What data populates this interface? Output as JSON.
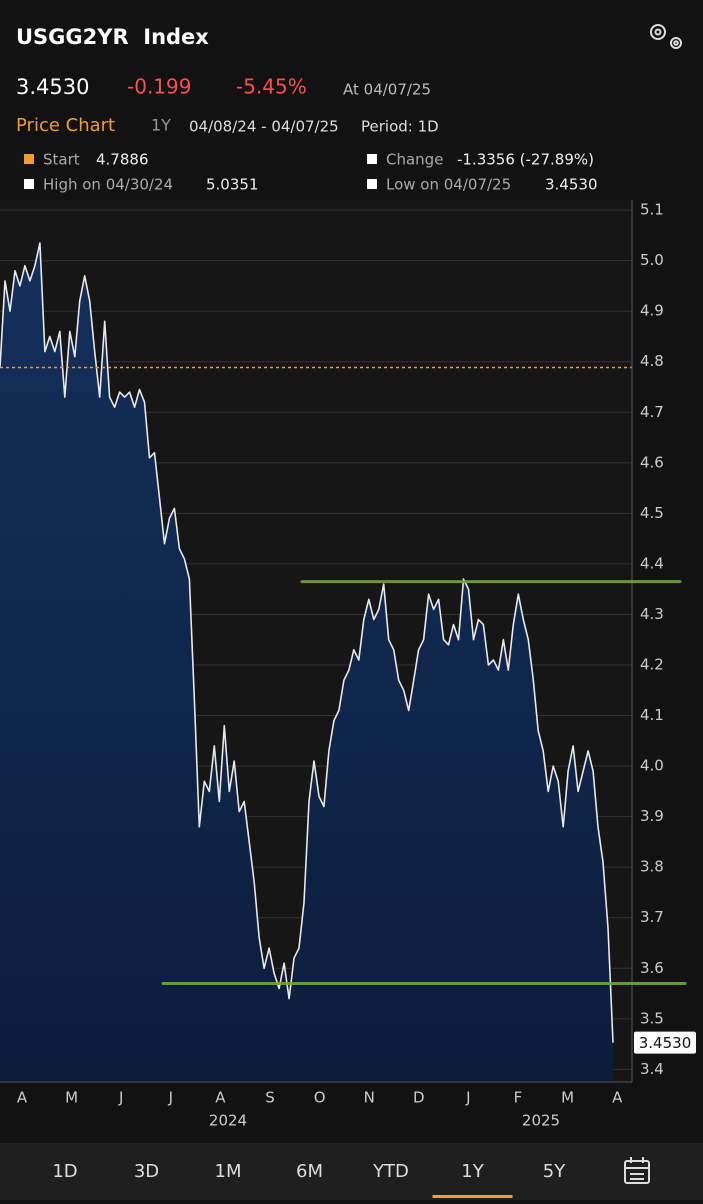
{
  "header": {
    "symbol": "USGG2YR  Index",
    "price": "3.4530",
    "change": "-0.199",
    "change_pct": "-5.45%",
    "as_of": "At 04/07/25",
    "chart_label": "Price Chart",
    "range": "1Y",
    "dates": "04/08/24 - 04/07/25",
    "period": "Period: 1D"
  },
  "legend": {
    "start_label": "Start",
    "change_label": "Change",
    "change_value": "-1.3356 (-27.89%)",
    "high_label": "High on 04/30/24",
    "high_value": "5.0351",
    "low_label": "Low on 04/07/25",
    "low_value": "3.4530"
  },
  "chart_data": {
    "type": "area",
    "start": 4.7886,
    "start_color": "#f39c2b",
    "series": [
      {
        "color": "#e8e8e8",
        "values": [
          4.79,
          4.96,
          4.9,
          4.98,
          4.95,
          4.99,
          4.96,
          4.99,
          5.035,
          4.82,
          4.85,
          4.82,
          4.86,
          4.73,
          4.86,
          4.81,
          4.92,
          4.97,
          4.92,
          4.82,
          4.73,
          4.88,
          4.73,
          4.71,
          4.74,
          4.73,
          4.74,
          4.71,
          4.745,
          4.72,
          4.61,
          4.62,
          4.53,
          4.44,
          4.49,
          4.51,
          4.43,
          4.41,
          4.37,
          4.13,
          3.88,
          3.97,
          3.95,
          4.04,
          3.93,
          4.08,
          3.95,
          4.01,
          3.91,
          3.93,
          3.85,
          3.77,
          3.66,
          3.6,
          3.64,
          3.59,
          3.56,
          3.61,
          3.54,
          3.62,
          3.64,
          3.73,
          3.93,
          4.01,
          3.94,
          3.92,
          4.03,
          4.09,
          4.11,
          4.17,
          4.19,
          4.23,
          4.21,
          4.29,
          4.33,
          4.29,
          4.31,
          4.36,
          4.25,
          4.23,
          4.17,
          4.15,
          4.11,
          4.17,
          4.23,
          4.25,
          4.34,
          4.31,
          4.33,
          4.25,
          4.24,
          4.28,
          4.25,
          4.37,
          4.35,
          4.25,
          4.29,
          4.28,
          4.2,
          4.21,
          4.19,
          4.25,
          4.19,
          4.28,
          4.34,
          4.29,
          4.25,
          4.17,
          4.07,
          4.03,
          3.95,
          4.0,
          3.97,
          3.88,
          3.99,
          4.04,
          3.95,
          3.99,
          4.03,
          3.99,
          3.88,
          3.81,
          3.68,
          3.453
        ]
      }
    ],
    "last_value_label": "3.4530",
    "trend_lines": [
      {
        "value": 4.365,
        "color": "#6fa83a"
      },
      {
        "value": 3.57,
        "color": "#6fa83a"
      }
    ],
    "ylim": [
      3.375,
      5.12
    ],
    "yticks": [
      3.4,
      3.5,
      3.6,
      3.7,
      3.8,
      3.9,
      {
        "value": 4,
        "label": "4.0"
      },
      4.1,
      4.2,
      4.3,
      4.4,
      4.5,
      4.6,
      4.7,
      4.8,
      4.9,
      {
        "value": 5,
        "label": "5.0"
      },
      5.1
    ],
    "grid": true,
    "month_labels": [
      "A",
      "M",
      "J",
      "J",
      "A",
      "S",
      "O",
      "N",
      "D",
      "J",
      "F",
      "M",
      "A"
    ],
    "year_labels": [
      "2024",
      "2025"
    ]
  },
  "tabs": [
    "1D",
    "3D",
    "1M",
    "6M",
    "YTD",
    "1Y",
    "5Y"
  ],
  "selected_tab": "1Y"
}
